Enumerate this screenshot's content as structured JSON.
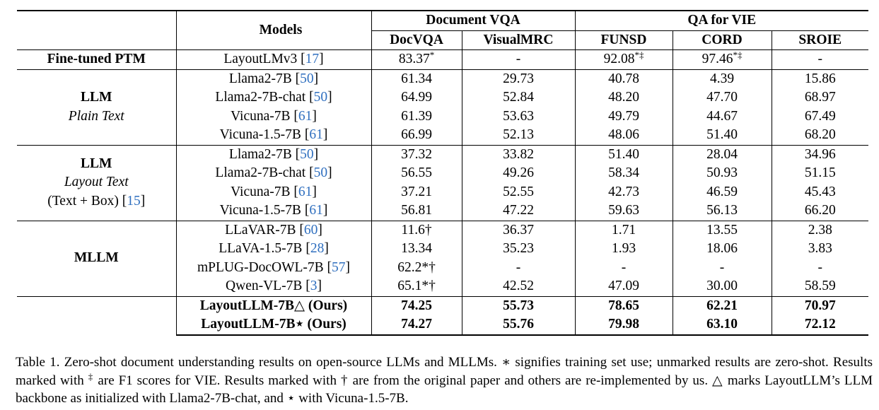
{
  "table": {
    "header": {
      "models_label": "Models",
      "group1": "Document VQA",
      "group2": "QA for VIE",
      "columns": [
        "DocVQA",
        "VisualMRC",
        "FUNSD",
        "CORD",
        "SROIE"
      ]
    },
    "finetuned": {
      "label": "Fine-tuned PTM",
      "model": "LayoutLMv3",
      "cite": "17",
      "values": [
        "83.37",
        "-",
        "92.08",
        "97.46",
        "-"
      ],
      "marks": [
        "*",
        "",
        "*‡",
        "*‡",
        ""
      ]
    },
    "llm_plain": {
      "label": "LLM",
      "sublabel": "Plain Text",
      "rows": [
        {
          "model": "Llama2-7B",
          "cite": "50",
          "values": [
            "61.34",
            "29.73",
            "40.78",
            "4.39",
            "15.86"
          ]
        },
        {
          "model": "Llama2-7B-chat",
          "cite": "50",
          "values": [
            "64.99",
            "52.84",
            "48.20",
            "47.70",
            "68.97"
          ]
        },
        {
          "model": "Vicuna-7B",
          "cite": "61",
          "values": [
            "61.39",
            "53.63",
            "49.79",
            "44.67",
            "67.49"
          ]
        },
        {
          "model": "Vicuna-1.5-7B",
          "cite": "61",
          "values": [
            "66.99",
            "52.13",
            "48.06",
            "51.40",
            "68.20"
          ]
        }
      ]
    },
    "llm_layout": {
      "label": "LLM",
      "sublabel": "Layout Text",
      "sublabel2": "(Text + Box)",
      "sublabel2_cite": "15",
      "rows": [
        {
          "model": "Llama2-7B",
          "cite": "50",
          "values": [
            "37.32",
            "33.82",
            "51.40",
            "28.04",
            "34.96"
          ]
        },
        {
          "model": "Llama2-7B-chat",
          "cite": "50",
          "values": [
            "56.55",
            "49.26",
            "58.34",
            "50.93",
            "51.15"
          ]
        },
        {
          "model": "Vicuna-7B",
          "cite": "61",
          "values": [
            "37.21",
            "52.55",
            "42.73",
            "46.59",
            "45.43"
          ]
        },
        {
          "model": "Vicuna-1.5-7B",
          "cite": "61",
          "values": [
            "56.81",
            "47.22",
            "59.63",
            "56.13",
            "66.20"
          ]
        }
      ]
    },
    "mllm": {
      "label": "MLLM",
      "rows": [
        {
          "model": "LLaVAR-7B",
          "cite": "60",
          "values": [
            "11.6†",
            "36.37",
            "1.71",
            "13.55",
            "2.38"
          ]
        },
        {
          "model": "LLaVA-1.5-7B",
          "cite": "28",
          "values": [
            "13.34",
            "35.23",
            "1.93",
            "18.06",
            "3.83"
          ]
        },
        {
          "model": "mPLUG-DocOWL-7B",
          "cite": "57",
          "values": [
            "62.2*†",
            "-",
            "-",
            "-",
            "-"
          ]
        },
        {
          "model": "Qwen-VL-7B",
          "cite": "3",
          "values": [
            "65.1*†",
            "42.52",
            "47.09",
            "30.00",
            "58.59"
          ]
        }
      ]
    },
    "ours": [
      {
        "model": "LayoutLLM-7B△ (Ours)",
        "values": [
          "74.25",
          "55.73",
          "78.65",
          "62.21",
          "70.97"
        ]
      },
      {
        "model": "LayoutLLM-7B⋆ (Ours)",
        "values": [
          "74.27",
          "55.76",
          "79.98",
          "63.10",
          "72.12"
        ]
      }
    ]
  },
  "caption": {
    "part1": "Table 1. Zero-shot document understanding results on open-source LLMs and MLLMs. ∗ signifies training set use; unmarked results are zero-shot. Results marked with ",
    "dagger_double": "‡",
    "part2": " are F1 scores for VIE. Results marked with † are from the original paper and others are re-implemented by us. △ marks LayoutLLM’s LLM backbone as initialized with Llama2-7B-chat, and ⋆ with Vicuna-1.5-7B."
  }
}
